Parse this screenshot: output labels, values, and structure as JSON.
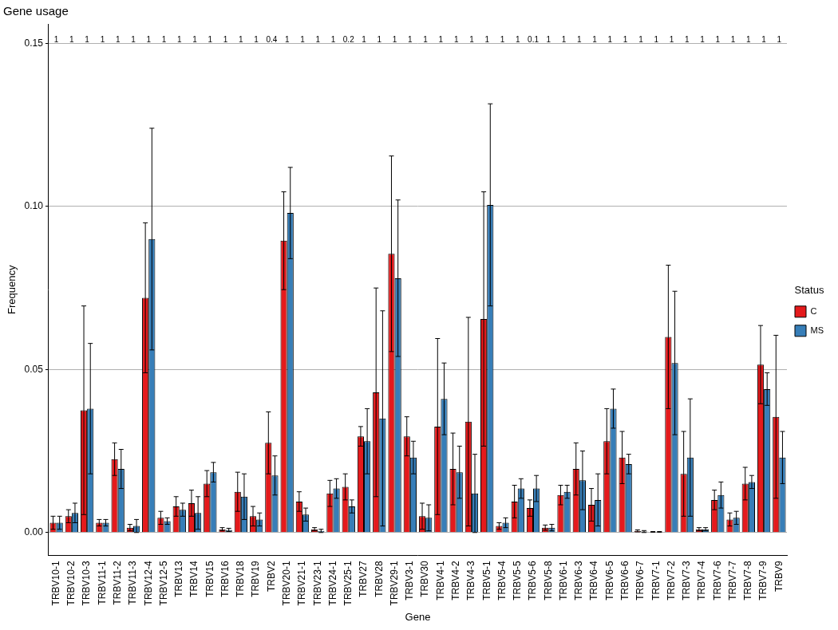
{
  "chart_data": {
    "type": "bar",
    "title": "Gene usage",
    "x_label": "Gene",
    "y_label": "Frequency",
    "categories": [
      "TRBV10-1",
      "TRBV10-2",
      "TRBV10-3",
      "TRBV11-1",
      "TRBV11-2",
      "TRBV11-3",
      "TRBV12-4",
      "TRBV12-5",
      "TRBV13",
      "TRBV14",
      "TRBV15",
      "TRBV16",
      "TRBV18",
      "TRBV19",
      "TRBV2",
      "TRBV20-1",
      "TRBV21-1",
      "TRBV23-1",
      "TRBV24-1",
      "TRBV25-1",
      "TRBV27",
      "TRBV28",
      "TRBV29-1",
      "TRBV3-1",
      "TRBV30",
      "TRBV4-1",
      "TRBV4-2",
      "TRBV4-3",
      "TRBV5-1",
      "TRBV5-4",
      "TRBV5-5",
      "TRBV5-6",
      "TRBV5-8",
      "TRBV6-1",
      "TRBV6-3",
      "TRBV6-4",
      "TRBV6-5",
      "TRBV6-6",
      "TRBV6-7",
      "TRBV7-1",
      "TRBV7-2",
      "TRBV7-3",
      "TRBV7-4",
      "TRBV7-6",
      "TRBV7-7",
      "TRBV7-8",
      "TRBV7-9",
      "TRBV9"
    ],
    "series": [
      {
        "name": "C",
        "color": "#E41A1C",
        "values": [
          0.003,
          0.005,
          0.0375,
          0.003,
          0.0225,
          0.0015,
          0.072,
          0.0045,
          0.008,
          0.009,
          0.015,
          0.001,
          0.0125,
          0.005,
          0.0275,
          0.0895,
          0.0095,
          0.001,
          0.012,
          0.014,
          0.0295,
          0.043,
          0.0855,
          0.0295,
          0.005,
          0.0325,
          0.0195,
          0.034,
          0.0655,
          0.002,
          0.0095,
          0.0075,
          0.0015,
          0.0115,
          0.0195,
          0.0085,
          0.028,
          0.023,
          0.0005,
          0.0002,
          0.06,
          0.018,
          0.001,
          0.01,
          0.004,
          0.015,
          0.0515,
          0.0355
        ],
        "errors": [
          0.002,
          0.002,
          0.032,
          0.001,
          0.005,
          0.001,
          0.023,
          0.002,
          0.003,
          0.004,
          0.004,
          0.0005,
          0.006,
          0.003,
          0.0095,
          0.015,
          0.003,
          0.0005,
          0.004,
          0.004,
          0.003,
          0.032,
          0.03,
          0.006,
          0.004,
          0.027,
          0.011,
          0.032,
          0.039,
          0.001,
          0.005,
          0.0025,
          0.0008,
          0.003,
          0.008,
          0.005,
          0.01,
          0.008,
          0.0003,
          0.0001,
          0.022,
          0.013,
          0.0005,
          0.003,
          0.002,
          0.005,
          0.012,
          0.025
        ]
      },
      {
        "name": "MS",
        "color": "#377EB8",
        "values": [
          0.003,
          0.006,
          0.038,
          0.003,
          0.0195,
          0.002,
          0.09,
          0.0035,
          0.007,
          0.006,
          0.0185,
          0.0008,
          0.011,
          0.004,
          0.0175,
          0.098,
          0.0055,
          0.0005,
          0.0135,
          0.008,
          0.028,
          0.035,
          0.078,
          0.023,
          0.0045,
          0.041,
          0.0185,
          0.012,
          0.1005,
          0.003,
          0.0135,
          0.0135,
          0.0015,
          0.0125,
          0.016,
          0.01,
          0.038,
          0.021,
          0.0003,
          0.0002,
          0.052,
          0.023,
          0.001,
          0.0115,
          0.0045,
          0.0155,
          0.044,
          0.023
        ],
        "errors": [
          0.002,
          0.003,
          0.02,
          0.001,
          0.006,
          0.002,
          0.034,
          0.001,
          0.002,
          0.005,
          0.003,
          0.0005,
          0.007,
          0.002,
          0.006,
          0.014,
          0.002,
          0.0005,
          0.003,
          0.002,
          0.01,
          0.033,
          0.024,
          0.005,
          0.004,
          0.011,
          0.008,
          0.012,
          0.031,
          0.0015,
          0.003,
          0.004,
          0.001,
          0.002,
          0.009,
          0.008,
          0.006,
          0.003,
          0.0003,
          0.0001,
          0.022,
          0.018,
          0.0005,
          0.004,
          0.002,
          0.002,
          0.005,
          0.008
        ]
      }
    ],
    "annotations": [
      "1",
      "1",
      "1",
      "1",
      "1",
      "1",
      "1",
      "1",
      "1",
      "1",
      "1",
      "1",
      "1",
      "1",
      "0.4",
      "1",
      "1",
      "1",
      "1",
      "0.2",
      "1",
      "1",
      "1",
      "1",
      "1",
      "1",
      "1",
      "1",
      "1",
      "1",
      "1",
      "0.1",
      "1",
      "1",
      "1",
      "1",
      "1",
      "1",
      "1",
      "1",
      "1",
      "1",
      "1",
      "1",
      "1",
      "1",
      "1",
      "1"
    ],
    "ylim": [
      -0.007,
      0.156
    ],
    "yticks": [
      {
        "value": 0,
        "label": "0.00"
      },
      {
        "value": 0.05,
        "label": "0.05"
      },
      {
        "value": 0.1,
        "label": "0.10"
      },
      {
        "value": 0.15,
        "label": "0.15"
      }
    ],
    "grid": true,
    "legend": "right",
    "legend_title": "Status"
  }
}
